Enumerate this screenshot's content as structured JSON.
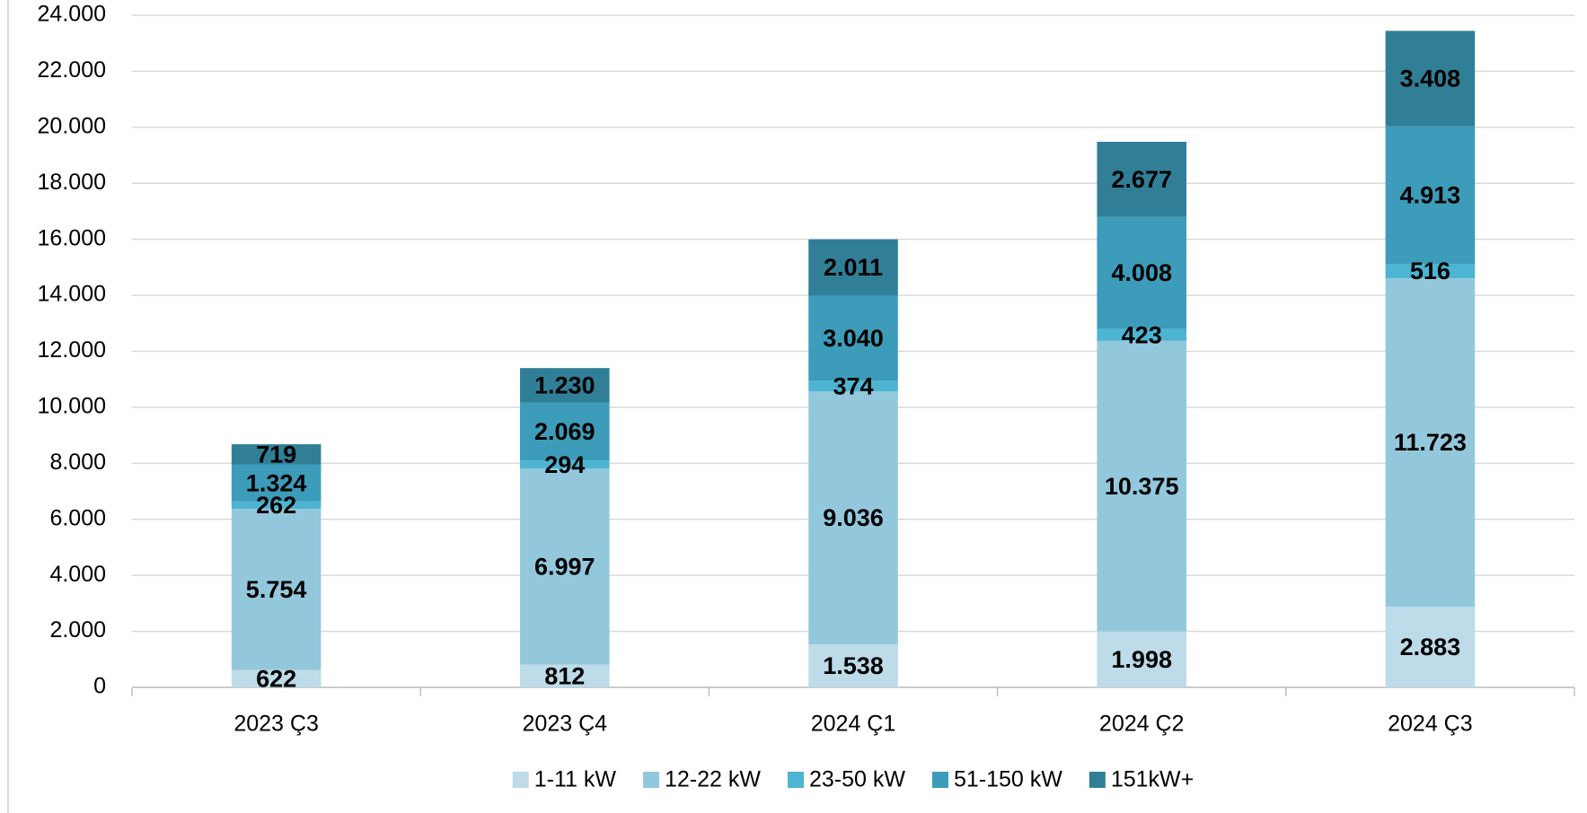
{
  "chart_data": {
    "type": "stacked_bar",
    "categories": [
      "2023 Ç3",
      "2023 Ç4",
      "2024 Ç1",
      "2024 Ç2",
      "2024 Ç3"
    ],
    "series": [
      {
        "name": "1-11 kW",
        "color": "#bddbe8",
        "values": [
          622,
          812,
          1538,
          1998,
          2883
        ],
        "value_labels": [
          "622",
          "812",
          "1.538",
          "1.998",
          "2.883"
        ]
      },
      {
        "name": "12-22 kW",
        "color": "#93c8dc",
        "values": [
          5754,
          6997,
          9036,
          10375,
          11723
        ],
        "value_labels": [
          "5.754",
          "6.997",
          "9.036",
          "10.375",
          "11.723"
        ]
      },
      {
        "name": "23-50 kW",
        "color": "#4db4d1",
        "values": [
          262,
          294,
          374,
          423,
          516
        ],
        "value_labels": [
          "262",
          "294",
          "374",
          "423",
          "516"
        ]
      },
      {
        "name": "51-150 kW",
        "color": "#3c9cb9",
        "values": [
          1324,
          2069,
          3040,
          4008,
          4913
        ],
        "value_labels": [
          "1.324",
          "2.069",
          "3.040",
          "4.008",
          "4.913"
        ]
      },
      {
        "name": "151kW+",
        "color": "#307f96",
        "values": [
          719,
          1230,
          2011,
          2677,
          3408
        ],
        "value_labels": [
          "719",
          "1.230",
          "2.011",
          "2.677",
          "3.408"
        ]
      }
    ],
    "ylim": [
      0,
      24000
    ],
    "yticks": [
      0,
      {
        "value": 2000,
        "label": "2.000"
      },
      {
        "value": 4000,
        "label": "4.000"
      },
      {
        "value": 6000,
        "label": "6.000"
      },
      {
        "value": 8000,
        "label": "8.000"
      },
      {
        "value": 10000,
        "label": "10.000"
      },
      {
        "value": 12000,
        "label": "12.000"
      },
      {
        "value": 14000,
        "label": "14.000"
      },
      {
        "value": 16000,
        "label": "16.000"
      },
      {
        "value": 18000,
        "label": "18.000"
      },
      {
        "value": 20000,
        "label": "20.000"
      },
      {
        "value": 22000,
        "label": "22.000"
      },
      {
        "value": 24000,
        "label": "24.000"
      }
    ],
    "grid": true,
    "legend": "bottom"
  }
}
